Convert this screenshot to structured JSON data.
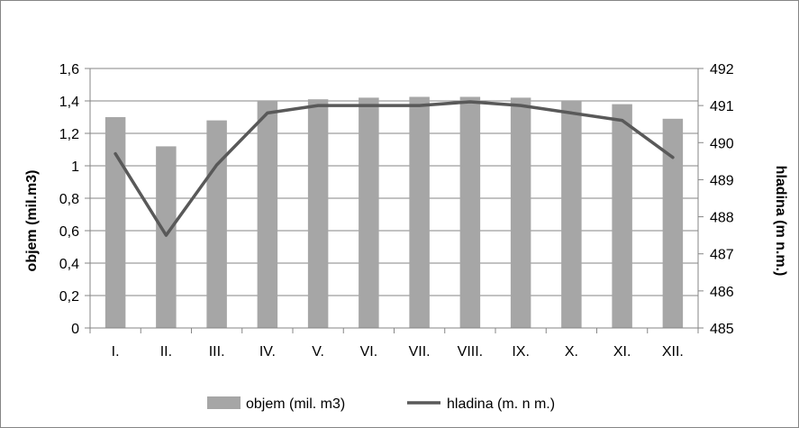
{
  "chart_data": {
    "type": "bar",
    "categories": [
      "I.",
      "II.",
      "III.",
      "IV.",
      "V.",
      "VI.",
      "VII.",
      "VIII.",
      "IX.",
      "X.",
      "XI.",
      "XII."
    ],
    "series": [
      {
        "name": "objem (mil. m3)",
        "type": "bar",
        "axis": "left",
        "values": [
          1.3,
          1.12,
          1.28,
          1.4,
          1.41,
          1.42,
          1.425,
          1.425,
          1.42,
          1.4,
          1.38,
          1.29
        ]
      },
      {
        "name": "hladina (m. n m.)",
        "type": "line",
        "axis": "right",
        "values": [
          489.7,
          487.5,
          489.4,
          490.8,
          491.0,
          491.0,
          491.0,
          491.1,
          491.0,
          490.8,
          490.6,
          489.6
        ]
      }
    ],
    "title": "",
    "ylabel": "objem (mil.m3)",
    "y2label": "hladina (m n.m.)",
    "ylim": [
      0,
      1.6
    ],
    "y2lim": [
      485,
      492
    ],
    "yticks": [
      "0",
      "0,2",
      "0,4",
      "0,6",
      "0,8",
      "1",
      "1,2",
      "1,4",
      "1,6"
    ],
    "y2ticks": [
      "485",
      "486",
      "487",
      "488",
      "489",
      "490",
      "491",
      "492"
    ],
    "grid": true,
    "legend_position": "bottom",
    "colors": {
      "bar": "#a6a6a6",
      "line": "#595959",
      "grid": "#868686",
      "axis": "#868686"
    }
  }
}
